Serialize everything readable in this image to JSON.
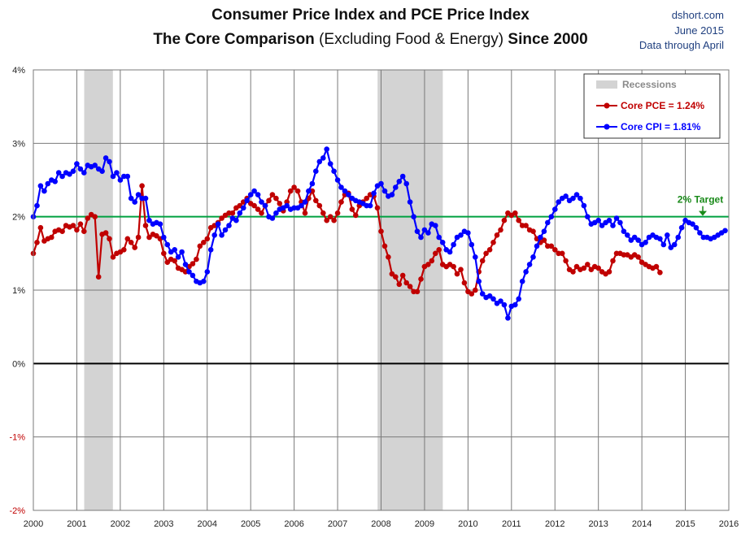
{
  "header": {
    "title_line1": "Consumer Price Index and PCE Price Index",
    "title_line2_bold_a": "The Core Comparison",
    "title_line2_normal": "(Excluding Food & Energy)",
    "title_line2_bold_b": "Since 2000",
    "source": "dshort.com",
    "date": "June 2015",
    "note": "Data through April"
  },
  "colors": {
    "pce": "#c00000",
    "cpi": "#0000ff",
    "target": "#00a040",
    "target_label": "#1a8a1a",
    "recession": "#d3d3d3",
    "zero_line": "#000000",
    "tick_negative": "#c00000"
  },
  "chart_data": {
    "type": "line",
    "title": "Consumer Price Index and PCE Price Index — The Core Comparison (Excluding Food & Energy) Since 2000",
    "xlabel": "",
    "ylabel": "",
    "xlim": [
      2000,
      2016
    ],
    "ylim": [
      -2,
      4
    ],
    "x_ticks": [
      "2000",
      "2001",
      "2002",
      "2003",
      "2004",
      "2005",
      "2006",
      "2007",
      "2008",
      "2009",
      "2010",
      "2011",
      "2012",
      "2013",
      "2014",
      "2015",
      "2016"
    ],
    "y_ticks": [
      {
        "value": 4,
        "label": "4%"
      },
      {
        "value": 3,
        "label": "3%"
      },
      {
        "value": 2,
        "label": "2%"
      },
      {
        "value": 1,
        "label": "1%"
      },
      {
        "value": 0,
        "label": "0%"
      },
      {
        "value": -1,
        "label": "-1%"
      },
      {
        "value": -2,
        "label": "-2%"
      }
    ],
    "recessions": [
      [
        2001.17,
        2001.83
      ],
      [
        2007.92,
        2009.42
      ]
    ],
    "target": {
      "value": 2,
      "label": "2% Target"
    },
    "legend": {
      "placement": "top-right",
      "recession_label": "Recessions",
      "entries": [
        "Core PCE = 1.24%",
        "Core CPI = 1.81%"
      ]
    },
    "series": [
      {
        "name": "Core PCE",
        "start": 2000,
        "step_months": 1,
        "values": [
          1.5,
          1.65,
          1.85,
          1.67,
          1.7,
          1.72,
          1.8,
          1.82,
          1.8,
          1.88,
          1.86,
          1.88,
          1.82,
          1.9,
          1.8,
          1.98,
          2.03,
          2.0,
          1.18,
          1.76,
          1.78,
          1.7,
          1.45,
          1.5,
          1.52,
          1.55,
          1.7,
          1.65,
          1.58,
          1.72,
          2.42,
          1.88,
          1.72,
          1.76,
          1.74,
          1.7,
          1.5,
          1.38,
          1.42,
          1.4,
          1.3,
          1.28,
          1.25,
          1.32,
          1.36,
          1.42,
          1.6,
          1.65,
          1.7,
          1.85,
          1.88,
          1.92,
          1.98,
          2.02,
          2.05,
          2.05,
          2.12,
          2.15,
          2.2,
          2.25,
          2.18,
          2.15,
          2.1,
          2.05,
          2.15,
          2.22,
          2.3,
          2.25,
          2.18,
          2.08,
          2.2,
          2.35,
          2.4,
          2.35,
          2.2,
          2.05,
          2.25,
          2.35,
          2.22,
          2.15,
          2.05,
          1.95,
          2.0,
          1.95,
          2.05,
          2.2,
          2.3,
          2.32,
          2.1,
          2.02,
          2.15,
          2.2,
          2.25,
          2.3,
          2.28,
          2.12,
          1.8,
          1.6,
          1.45,
          1.22,
          1.18,
          1.08,
          1.2,
          1.1,
          1.05,
          0.98,
          0.98,
          1.15,
          1.32,
          1.35,
          1.4,
          1.5,
          1.55,
          1.35,
          1.32,
          1.35,
          1.32,
          1.22,
          1.28,
          1.1,
          0.98,
          0.95,
          1.0,
          1.25,
          1.4,
          1.5,
          1.55,
          1.65,
          1.75,
          1.82,
          1.95,
          2.05,
          2.02,
          2.05,
          1.95,
          1.88,
          1.88,
          1.82,
          1.8,
          1.7,
          1.65,
          1.68,
          1.6,
          1.6,
          1.55,
          1.5,
          1.5,
          1.4,
          1.28,
          1.25,
          1.32,
          1.28,
          1.3,
          1.35,
          1.28,
          1.32,
          1.3,
          1.25,
          1.22,
          1.25,
          1.4,
          1.5,
          1.5,
          1.48,
          1.48,
          1.45,
          1.48,
          1.45,
          1.38,
          1.35,
          1.32,
          1.3,
          1.32,
          1.24
        ]
      },
      {
        "name": "Core CPI",
        "start": 2000,
        "step_months": 1,
        "values": [
          2.0,
          2.15,
          2.42,
          2.35,
          2.45,
          2.5,
          2.48,
          2.6,
          2.55,
          2.6,
          2.58,
          2.62,
          2.72,
          2.65,
          2.6,
          2.7,
          2.68,
          2.7,
          2.65,
          2.62,
          2.8,
          2.75,
          2.55,
          2.6,
          2.5,
          2.55,
          2.55,
          2.25,
          2.2,
          2.3,
          2.25,
          2.25,
          1.95,
          1.9,
          1.92,
          1.9,
          1.72,
          1.62,
          1.52,
          1.55,
          1.45,
          1.52,
          1.35,
          1.25,
          1.2,
          1.12,
          1.1,
          1.12,
          1.25,
          1.55,
          1.75,
          1.9,
          1.75,
          1.82,
          1.88,
          1.98,
          1.95,
          2.05,
          2.12,
          2.22,
          2.3,
          2.35,
          2.3,
          2.2,
          2.15,
          2.0,
          1.98,
          2.05,
          2.1,
          2.12,
          2.15,
          2.1,
          2.12,
          2.12,
          2.15,
          2.2,
          2.35,
          2.45,
          2.62,
          2.75,
          2.8,
          2.92,
          2.72,
          2.62,
          2.5,
          2.4,
          2.35,
          2.3,
          2.25,
          2.22,
          2.2,
          2.18,
          2.15,
          2.15,
          2.32,
          2.42,
          2.45,
          2.35,
          2.28,
          2.3,
          2.4,
          2.48,
          2.55,
          2.45,
          2.2,
          2.0,
          1.8,
          1.72,
          1.82,
          1.78,
          1.9,
          1.88,
          1.72,
          1.65,
          1.55,
          1.52,
          1.62,
          1.72,
          1.75,
          1.8,
          1.78,
          1.62,
          1.45,
          1.12,
          0.95,
          0.9,
          0.92,
          0.88,
          0.82,
          0.85,
          0.8,
          0.62,
          0.78,
          0.8,
          0.88,
          1.12,
          1.25,
          1.35,
          1.45,
          1.6,
          1.72,
          1.8,
          1.92,
          2.0,
          2.1,
          2.2,
          2.25,
          2.28,
          2.22,
          2.25,
          2.3,
          2.25,
          2.15,
          2.0,
          1.9,
          1.92,
          1.95,
          1.88,
          1.92,
          1.95,
          1.88,
          1.98,
          1.92,
          1.8,
          1.75,
          1.68,
          1.72,
          1.68,
          1.62,
          1.65,
          1.72,
          1.75,
          1.72,
          1.7,
          1.62,
          1.75,
          1.58,
          1.62,
          1.72,
          1.85,
          1.95,
          1.92,
          1.9,
          1.85,
          1.78,
          1.72,
          1.72,
          1.7,
          1.72,
          1.75,
          1.78,
          1.81
        ]
      }
    ]
  }
}
